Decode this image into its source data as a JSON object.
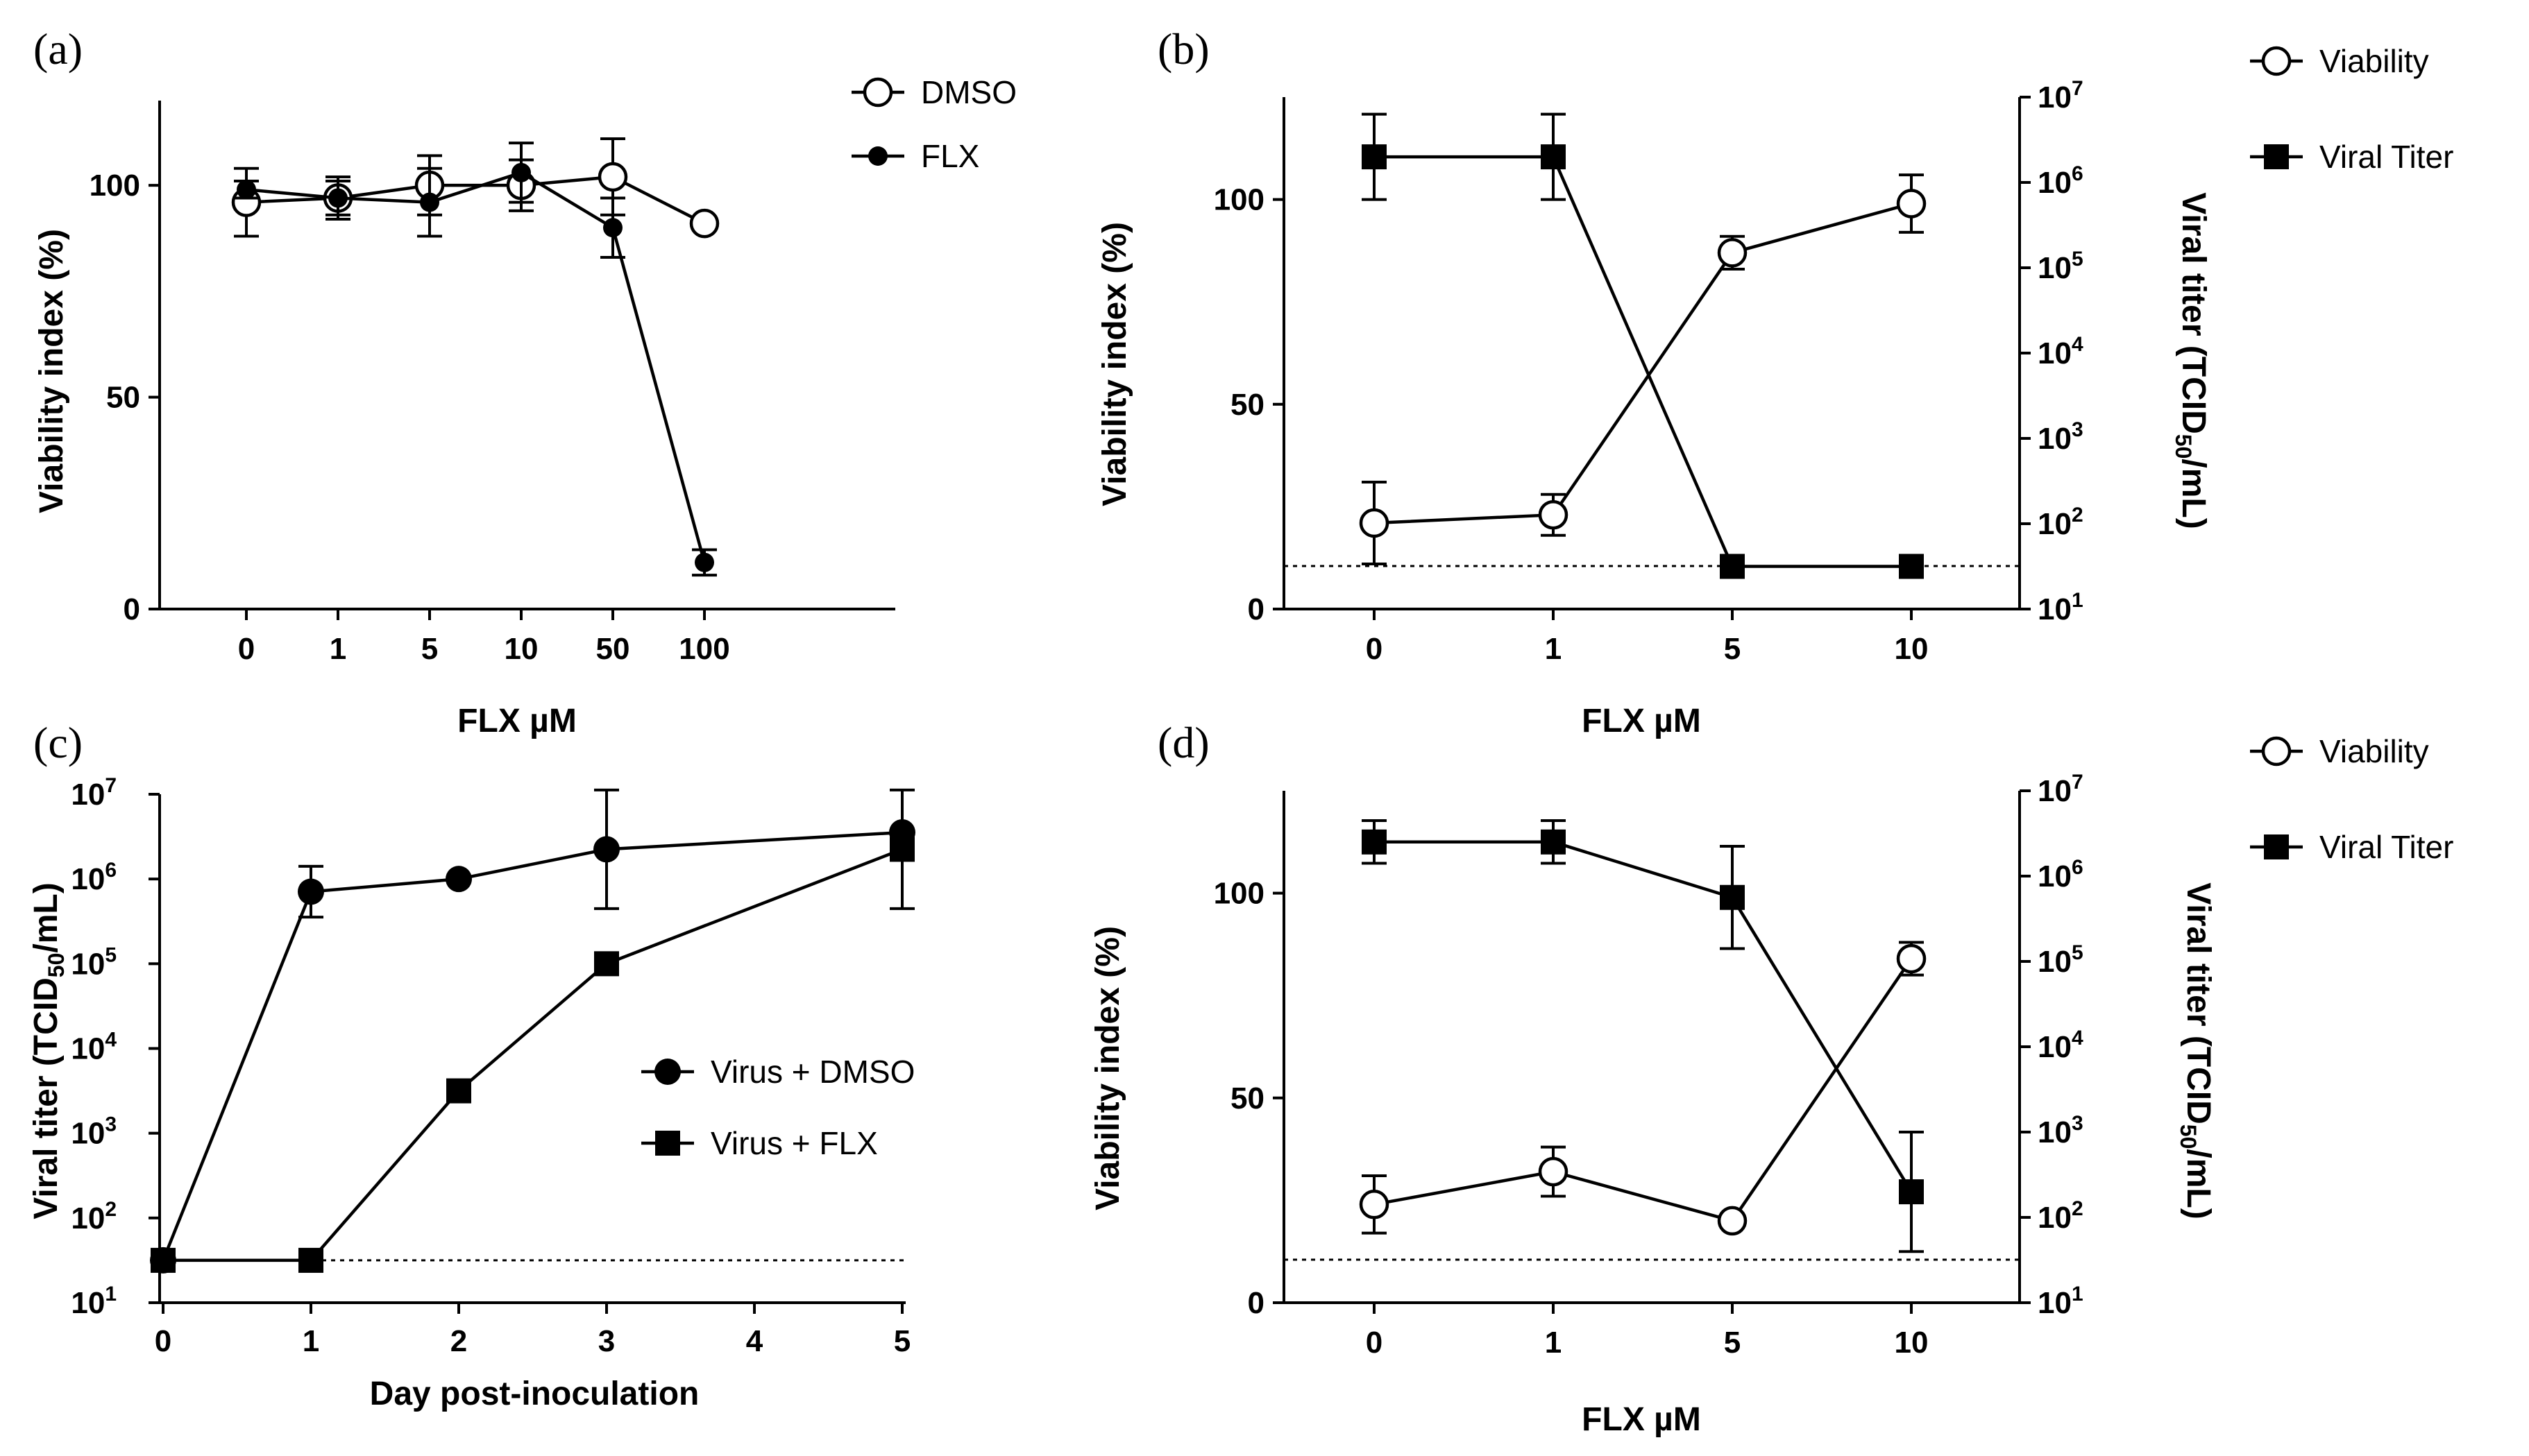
{
  "figure": {
    "colors": {
      "ink": "#000000",
      "background": "#ffffff"
    }
  },
  "chart_data": [
    {
      "id": "a",
      "panel_label": "(a)",
      "type": "line",
      "title": "",
      "xlabel": "FLX µM",
      "ylabel": "Viability index (%)",
      "categories": [
        "0",
        "1",
        "5",
        "10",
        "50",
        "100"
      ],
      "ylim": [
        0,
        120
      ],
      "yticks": [
        0,
        50,
        100
      ],
      "legend_position": "top-right",
      "series": [
        {
          "name": "DMSO",
          "marker": "open-circle",
          "axis": "left",
          "values": [
            96,
            97,
            100,
            100,
            102,
            91
          ],
          "errors": [
            8,
            5,
            7,
            6,
            9,
            0
          ]
        },
        {
          "name": "FLX",
          "marker": "filled-circle-small",
          "axis": "left",
          "values": [
            99,
            97,
            96,
            103,
            90,
            11
          ],
          "errors": [
            2,
            4,
            8,
            7,
            7,
            3
          ]
        }
      ]
    },
    {
      "id": "b",
      "panel_label": "(b)",
      "type": "line",
      "title": "",
      "xlabel": "FLX µM",
      "ylabel": "Viability index (%)",
      "ylabel_right": "Viral titer (TCID50/mL)",
      "categories": [
        "0",
        "1",
        "5",
        "10"
      ],
      "ylim": [
        0,
        125
      ],
      "yticks": [
        0,
        50,
        100
      ],
      "y2_log_range": [
        1,
        7
      ],
      "y2_ticks": [
        "10^1",
        "10^2",
        "10^3",
        "10^4",
        "10^5",
        "10^6",
        "10^7"
      ],
      "reference_line_left_axis": 10.5,
      "legend_position": "top-right-outside",
      "series": [
        {
          "name": "Viability",
          "marker": "open-circle",
          "axis": "left",
          "values": [
            21,
            23,
            87,
            99
          ],
          "errors": [
            10,
            5,
            4,
            7
          ]
        },
        {
          "name": "Viral Titer",
          "marker": "filled-square",
          "axis": "right",
          "log10_values": [
            6.3,
            6.3,
            1.5,
            1.5
          ],
          "errors_log10": [
            0.5,
            0.5,
            0,
            0
          ]
        }
      ]
    },
    {
      "id": "c",
      "panel_label": "(c)",
      "type": "line",
      "title": "",
      "xlabel": "Day post-inoculation",
      "ylabel": "Viral titer (TCID50/mL)",
      "x_range": [
        0,
        5
      ],
      "xticks": [
        0,
        1,
        2,
        3,
        4,
        5
      ],
      "y_log_range": [
        1,
        7
      ],
      "yticks": [
        "10^1",
        "10^2",
        "10^3",
        "10^4",
        "10^5",
        "10^6",
        "10^7"
      ],
      "reference_line_log10": 1.5,
      "legend_position": "center-right",
      "series": [
        {
          "name": "Virus + DMSO",
          "marker": "filled-circle",
          "x": [
            0,
            1,
            2,
            3,
            5
          ],
          "log10_values": [
            1.5,
            5.85,
            6.0,
            6.35,
            6.55
          ],
          "errors_log10": [
            0,
            0.3,
            0,
            0.7,
            0
          ]
        },
        {
          "name": "Virus + FLX",
          "marker": "filled-square",
          "x": [
            0,
            1,
            2,
            3,
            5
          ],
          "log10_values": [
            1.5,
            1.5,
            3.5,
            5.0,
            6.35
          ],
          "errors_log10": [
            0,
            0,
            0,
            0,
            0.7
          ]
        }
      ]
    },
    {
      "id": "d",
      "panel_label": "(d)",
      "type": "line",
      "title": "",
      "xlabel": "FLX µM",
      "ylabel": "Viability index (%)",
      "ylabel_right": "Viral titer (TCID50/mL)",
      "categories": [
        "0",
        "1",
        "5",
        "10"
      ],
      "ylim": [
        0,
        125
      ],
      "yticks": [
        0,
        50,
        100
      ],
      "y2_log_range": [
        1,
        7
      ],
      "y2_ticks": [
        "10^1",
        "10^2",
        "10^3",
        "10^4",
        "10^5",
        "10^6",
        "10^7"
      ],
      "reference_line_left_axis": 10.5,
      "legend_position": "top-right-outside",
      "series": [
        {
          "name": "Viability",
          "marker": "open-circle",
          "axis": "left",
          "values": [
            24,
            32,
            20,
            84
          ],
          "errors": [
            7,
            6,
            0,
            4
          ]
        },
        {
          "name": "Viral Titer",
          "marker": "filled-square",
          "axis": "right",
          "log10_values": [
            6.4,
            6.4,
            5.75,
            2.3
          ],
          "errors_log10": [
            0.25,
            0.25,
            0.6,
            0.7
          ]
        }
      ]
    }
  ]
}
